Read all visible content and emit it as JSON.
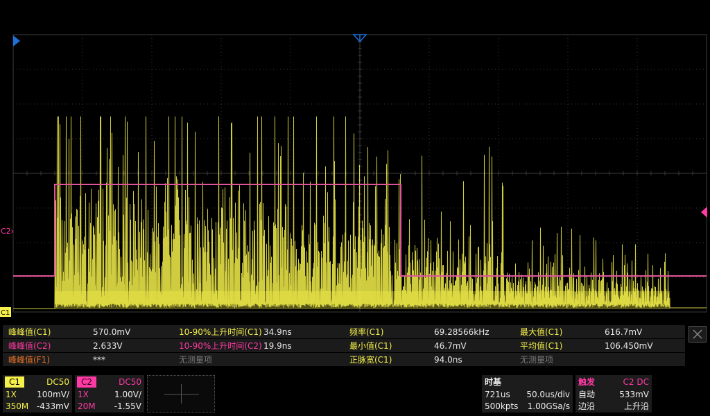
{
  "colors": {
    "ch1": "#f5f04a",
    "ch2": "#ff3aa5",
    "ch2_line": "#e0559a",
    "f1": "#e8742a",
    "grid": "#3c3c3c",
    "marker_blue": "#1e6fd8",
    "inactive": "#7a7a7a"
  },
  "screen": {
    "c1_label": "C1",
    "c2_label": "C2",
    "c2_arrow": "›"
  },
  "measurements": [
    [
      {
        "label": "峰峰值(C1)",
        "value": "570.0mV",
        "color": "ch1"
      },
      {
        "label": "10-90%上升时间(C1)",
        "value": "34.9ns",
        "color": "ch1"
      },
      {
        "label": "频率(C1)",
        "value": "69.28566kHz",
        "color": "ch1"
      },
      {
        "label": "最大值(C1)",
        "value": "616.7mV",
        "color": "ch1"
      }
    ],
    [
      {
        "label": "峰峰值(C2)",
        "value": "2.633V",
        "color": "ch2"
      },
      {
        "label": "10-90%上升时间(C2)",
        "value": "19.9ns",
        "color": "ch2"
      },
      {
        "label": "最小值(C1)",
        "value": "46.7mV",
        "color": "ch1"
      },
      {
        "label": "平均值(C1)",
        "value": "106.450mV",
        "color": "ch1"
      }
    ],
    [
      {
        "label": "峰峰值(F1)",
        "value": "***",
        "color": "f1"
      },
      {
        "label": "无测量项",
        "value": "",
        "color": "inactive"
      },
      {
        "label": "正脉宽(C1)",
        "value": "94.0ns",
        "color": "ch1"
      },
      {
        "label": "无测量项",
        "value": "",
        "color": "inactive"
      }
    ]
  ],
  "close_icon": "close-icon",
  "channel1": {
    "tag": "C1",
    "coupling": "DC50",
    "probe": "1X",
    "scale": "100mV/",
    "bandwidth": "350M",
    "offset": "-433mV"
  },
  "channel2": {
    "tag": "C2",
    "coupling": "DC50",
    "probe": "1X",
    "scale": "1.00V/",
    "bandwidth": "20M",
    "offset": "-1.55V"
  },
  "timebase": {
    "title": "时基",
    "delay": "721us",
    "scale": "50.0us/div",
    "memory": "500kpts",
    "sample_rate": "1.00GSa/s"
  },
  "trigger": {
    "title": "触发",
    "source": "C2 DC",
    "mode": "自动",
    "level": "533mV",
    "type": "边沿",
    "slope": "上升沿"
  }
}
